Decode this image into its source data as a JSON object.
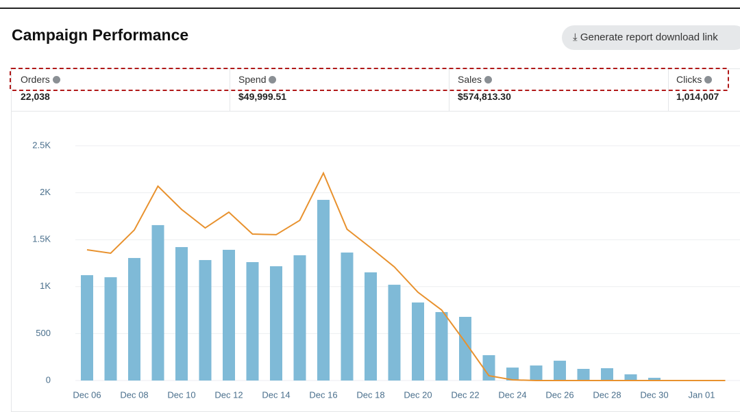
{
  "header": {
    "title": "Campaign Performance",
    "button": "Generate report download link"
  },
  "metrics": [
    {
      "label": "Orders",
      "value": "22,038"
    },
    {
      "label": "Spend",
      "value": "$49,999.51"
    },
    {
      "label": "Sales",
      "value": "$574,813.30"
    },
    {
      "label": "Clicks",
      "value": "1,014,007"
    }
  ],
  "chart_data": {
    "type": "bar",
    "categories": [
      "Dec 06",
      null,
      "Dec 08",
      null,
      "Dec 10",
      null,
      "Dec 12",
      null,
      "Dec 14",
      null,
      "Dec 16",
      null,
      "Dec 18",
      null,
      "Dec 20",
      null,
      "Dec 22",
      null,
      "Dec 24",
      null,
      "Dec 26",
      null,
      "Dec 28",
      null,
      "Dec 30",
      null,
      "Jan 01",
      null
    ],
    "series": [
      {
        "type": "bar",
        "color": "#7fbad7",
        "values": [
          1122,
          1100,
          1305,
          1655,
          1421,
          1283,
          1392,
          1261,
          1217,
          1334,
          1924,
          1363,
          1152,
          1020,
          831,
          729,
          678,
          270,
          138,
          160,
          211,
          124,
          131,
          66,
          29,
          0,
          0,
          0
        ]
      },
      {
        "type": "line",
        "color": "#e8912d",
        "values": [
          1392,
          1356,
          1603,
          2070,
          1822,
          1625,
          1793,
          1560,
          1553,
          1706,
          2209,
          1611,
          1414,
          1210,
          940,
          751,
          408,
          51,
          7,
          0,
          0,
          0,
          0,
          0,
          0,
          0,
          0,
          0
        ]
      }
    ],
    "ylim": [
      0,
      2500
    ],
    "yticks": [
      0,
      500,
      {
        "value": 1000,
        "label": "1K"
      },
      {
        "value": 1500,
        "label": "1.5K"
      },
      {
        "value": 2000,
        "label": "2K"
      },
      {
        "value": 2500,
        "label": "2.5K"
      }
    ],
    "grid": true
  }
}
